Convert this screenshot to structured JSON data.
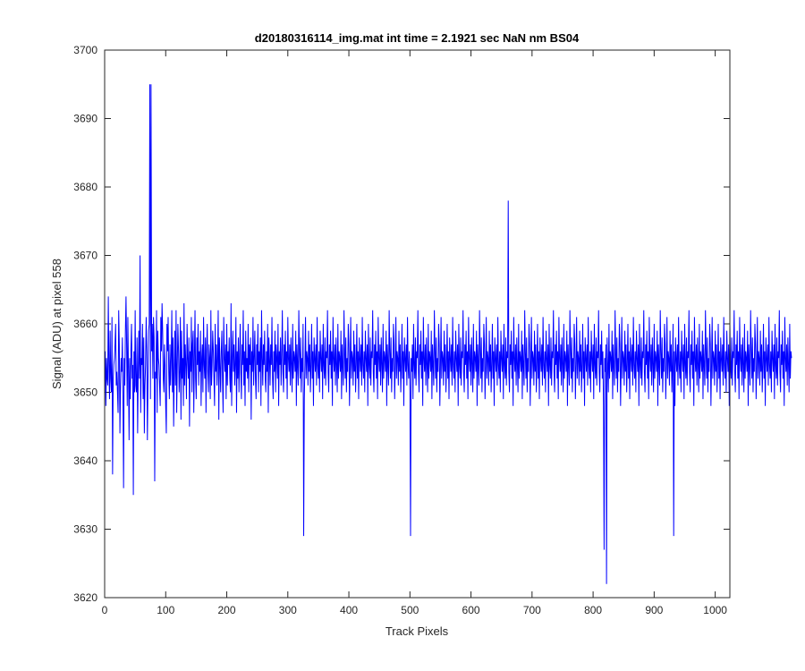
{
  "chart_data": {
    "type": "line",
    "title": "d20180316114_img.mat int time = 2.1921 sec  NaN nm BS04",
    "xlabel": "Track Pixels",
    "ylabel": "Signal (ADU) at pixel 558",
    "xlim": [
      0,
      1024
    ],
    "ylim": [
      3620,
      3700
    ],
    "xticks": [
      0,
      100,
      200,
      300,
      400,
      500,
      600,
      700,
      800,
      900,
      1000
    ],
    "yticks": [
      3620,
      3630,
      3640,
      3650,
      3660,
      3670,
      3680,
      3690,
      3700
    ],
    "grid": false,
    "legend": "none",
    "series": [
      {
        "color": "#0000ff",
        "x_start": 1,
        "x_step": 1,
        "values": [
          3656,
          3648,
          3655,
          3652,
          3651,
          3664,
          3654,
          3649,
          3659,
          3652,
          3650,
          3661,
          3638,
          3652,
          3654,
          3655,
          3657,
          3660,
          3651,
          3653,
          3650,
          3647,
          3662,
          3657,
          3644,
          3651,
          3655,
          3653,
          3658,
          3649,
          3636,
          3655,
          3651,
          3659,
          3664,
          3657,
          3648,
          3661,
          3653,
          3643,
          3655,
          3649,
          3656,
          3660,
          3652,
          3654,
          3635,
          3656,
          3650,
          3662,
          3651,
          3650,
          3658,
          3644,
          3653,
          3659,
          3652,
          3670,
          3647,
          3655,
          3654,
          3660,
          3649,
          3658,
          3644,
          3651,
          3654,
          3661,
          3656,
          3643,
          3652,
          3659,
          3660,
          3653,
          3649,
          3695,
          3656,
          3660,
          3652,
          3661,
          3658,
          3637,
          3653,
          3652,
          3662,
          3647,
          3659,
          3655,
          3654,
          3651,
          3648,
          3661,
          3656,
          3663,
          3659,
          3652,
          3650,
          3657,
          3654,
          3648,
          3644,
          3660,
          3656,
          3661,
          3653,
          3649,
          3657,
          3651,
          3655,
          3662,
          3650,
          3658,
          3645,
          3653,
          3659,
          3651,
          3662,
          3647,
          3654,
          3660,
          3656,
          3650,
          3653,
          3661,
          3646,
          3659,
          3652,
          3655,
          3648,
          3663,
          3651,
          3657,
          3654,
          3649,
          3660,
          3655,
          3652,
          3658,
          3645,
          3656,
          3653,
          3661,
          3650,
          3657,
          3659,
          3647,
          3655,
          3662,
          3652,
          3649,
          3658,
          3654,
          3660,
          3651,
          3656,
          3653,
          3659,
          3648,
          3655,
          3657,
          3650,
          3661,
          3654,
          3652,
          3658,
          3647,
          3656,
          3660,
          3653,
          3650,
          3657,
          3655,
          3649,
          3662,
          3651,
          3654,
          3659,
          3656,
          3652,
          3648,
          3660,
          3653,
          3657,
          3651,
          3655,
          3662,
          3646,
          3658,
          3654,
          3650,
          3656,
          3659,
          3652,
          3647,
          3661,
          3655,
          3653,
          3657,
          3649,
          3660,
          3651,
          3656,
          3654,
          3658,
          3652,
          3650,
          3663,
          3648,
          3655,
          3659,
          3653,
          3657,
          3651,
          3654,
          3661,
          3647,
          3656,
          3652,
          3658,
          3650,
          3655,
          3660,
          3653,
          3649,
          3657,
          3654,
          3662,
          3651,
          3656,
          3648,
          3659,
          3653,
          3655,
          3652,
          3660,
          3650,
          3657,
          3654,
          3658,
          3646,
          3656,
          3653,
          3661,
          3651,
          3655,
          3659,
          3652,
          3649,
          3657,
          3654,
          3660,
          3650,
          3656,
          3653,
          3658,
          3648,
          3662,
          3655,
          3651,
          3657,
          3654,
          3659,
          3652,
          3650,
          3656,
          3653,
          3660,
          3647,
          3658,
          3655,
          3651,
          3657,
          3654,
          3661,
          3652,
          3649,
          3656,
          3653,
          3659,
          3650,
          3657,
          3655,
          3652,
          3660,
          3648,
          3656,
          3654,
          3658,
          3651,
          3655,
          3662,
          3653,
          3650,
          3657,
          3654,
          3659,
          3652,
          3656,
          3649,
          3661,
          3655,
          3653,
          3657,
          3651,
          3658,
          3654,
          3650,
          3660,
          3652,
          3656,
          3655,
          3653,
          3659,
          3648,
          3657,
          3654,
          3651,
          3662,
          3656,
          3652,
          3658,
          3650,
          3655,
          3653,
          3660,
          3657,
          3649,
          3654,
          3661,
          3652,
          3656,
          3655,
          3651,
          3659,
          3653,
          3657,
          3650,
          3654,
          3660,
          3652,
          3656,
          3648,
          3658,
          3655,
          3653,
          3657,
          3651,
          3661,
          3654,
          3652,
          3656,
          3650,
          3659,
          3655,
          3653,
          3657,
          3649,
          3660,
          3654,
          3652,
          3658,
          3651,
          3656,
          3655,
          3662,
          3653,
          3650,
          3657,
          3654,
          3659,
          3652,
          3656,
          3648,
          3661,
          3655,
          3653,
          3657,
          3651,
          3658,
          3654,
          3650,
          3660,
          3652,
          3656,
          3655,
          3653,
          3659,
          3649,
          3657,
          3654,
          3651,
          3662,
          3656,
          3652,
          3658,
          3650,
          3655,
          3653,
          3660,
          3657,
          3648,
          3654,
          3661,
          3652,
          3656,
          3655,
          3651,
          3659,
          3653,
          3657,
          3650,
          3654,
          3660,
          3652,
          3656,
          3649,
          3658,
          3655,
          3653,
          3657,
          3651,
          3661,
          3654,
          3652,
          3656,
          3650,
          3659,
          3655,
          3653,
          3657,
          3648,
          3660,
          3654,
          3652,
          3658,
          3651,
          3656,
          3655,
          3662,
          3653,
          3650,
          3657,
          3654,
          3659,
          3652,
          3656,
          3649,
          3661,
          3655,
          3653,
          3657,
          3651,
          3658,
          3654,
          3650,
          3660,
          3652,
          3656,
          3655,
          3653,
          3659,
          3648,
          3657,
          3654,
          3651,
          3662,
          3656,
          3652,
          3658,
          3650,
          3655,
          3653,
          3660,
          3657,
          3649,
          3654,
          3661,
          3652,
          3656,
          3655,
          3651,
          3659,
          3653,
          3657,
          3650,
          3654,
          3660,
          3652,
          3656,
          3648,
          3658,
          3655,
          3653,
          3657,
          3651,
          3661,
          3654,
          3652,
          3656,
          3650,
          3659,
          3655,
          3653,
          3657,
          3649,
          3660,
          3654,
          3652,
          3658,
          3651,
          3656,
          3655,
          3662,
          3653,
          3650,
          3657,
          3654,
          3659,
          3652,
          3656,
          3648,
          3661,
          3655,
          3653,
          3657,
          3651,
          3658,
          3654,
          3650,
          3660,
          3652,
          3656,
          3655,
          3653,
          3659,
          3649,
          3657,
          3654,
          3651,
          3662,
          3656,
          3652,
          3658,
          3650,
          3655,
          3653,
          3660,
          3657,
          3648,
          3654,
          3661,
          3652,
          3656,
          3655,
          3651,
          3659,
          3653,
          3657,
          3650,
          3654,
          3660,
          3652,
          3656,
          3649,
          3658,
          3655,
          3653,
          3657,
          3651,
          3661,
          3654,
          3652,
          3656,
          3650,
          3659,
          3655,
          3653,
          3657,
          3648,
          3660,
          3654,
          3652,
          3658,
          3651,
          3656,
          3655,
          3662,
          3653,
          3650,
          3657,
          3654,
          3659,
          3652,
          3656,
          3649,
          3661,
          3655,
          3653,
          3657,
          3651,
          3658,
          3654,
          3650,
          3660,
          3652,
          3656,
          3655,
          3653,
          3659,
          3648,
          3657,
          3654,
          3651,
          3662,
          3656,
          3652,
          3658,
          3650,
          3655,
          3653,
          3660,
          3657,
          3649,
          3654,
          3661,
          3652,
          3656,
          3655,
          3651,
          3659,
          3653,
          3657,
          3650,
          3654,
          3660,
          3652,
          3656,
          3648,
          3658,
          3655,
          3653,
          3657,
          3651,
          3661,
          3654,
          3652,
          3656,
          3650,
          3659,
          3655,
          3653,
          3657,
          3649,
          3660,
          3654,
          3652,
          3658,
          3651,
          3656,
          3655,
          3662,
          3653,
          3650,
          3657,
          3654,
          3659,
          3652,
          3656,
          3648,
          3661,
          3655,
          3653,
          3657,
          3651,
          3658,
          3654,
          3650,
          3660,
          3652,
          3656,
          3655,
          3653,
          3659,
          3649,
          3657,
          3654,
          3651,
          3662,
          3656,
          3652,
          3658,
          3650,
          3655,
          3653,
          3660,
          3657,
          3648,
          3654,
          3661,
          3652,
          3656,
          3655,
          3651,
          3659,
          3653,
          3657,
          3650,
          3654,
          3660,
          3652,
          3656,
          3649,
          3658,
          3655,
          3653,
          3657,
          3651,
          3661,
          3654,
          3652,
          3656,
          3650,
          3659,
          3655,
          3653,
          3657,
          3648,
          3660,
          3654,
          3652,
          3658,
          3651,
          3656,
          3655,
          3662,
          3653,
          3650,
          3657,
          3654,
          3659,
          3652,
          3656,
          3649,
          3661,
          3655,
          3653,
          3657,
          3651,
          3658,
          3654,
          3650,
          3660,
          3652,
          3656,
          3655,
          3653,
          3659,
          3648,
          3657,
          3654,
          3651,
          3662,
          3656,
          3652,
          3658,
          3650,
          3655,
          3653,
          3660,
          3657,
          3649,
          3654,
          3661,
          3652,
          3656,
          3655,
          3651,
          3659,
          3653,
          3657,
          3650,
          3654,
          3660,
          3652,
          3656,
          3648,
          3658,
          3655,
          3653,
          3657,
          3651,
          3661,
          3654,
          3652,
          3656,
          3650,
          3659,
          3655,
          3653,
          3657,
          3649,
          3660,
          3654,
          3652,
          3658,
          3651,
          3656,
          3655,
          3662,
          3653,
          3650,
          3657,
          3654,
          3659,
          3652,
          3656,
          3648,
          3661,
          3655,
          3653,
          3657,
          3651,
          3658,
          3654,
          3650,
          3660,
          3652,
          3656,
          3655,
          3653,
          3659,
          3649,
          3657,
          3654,
          3651,
          3662,
          3656,
          3652,
          3658,
          3650,
          3655,
          3653,
          3660,
          3657,
          3648,
          3654,
          3661,
          3652,
          3656,
          3655,
          3651,
          3659,
          3653,
          3657,
          3650,
          3654,
          3660,
          3652,
          3656,
          3649,
          3658,
          3655,
          3653,
          3657,
          3651,
          3661,
          3654,
          3652,
          3656,
          3650,
          3659,
          3655,
          3653,
          3657,
          3648,
          3660,
          3654,
          3652,
          3658,
          3651,
          3656,
          3655,
          3662,
          3653,
          3650,
          3657,
          3654,
          3659,
          3652,
          3656,
          3649,
          3661,
          3655,
          3653,
          3657,
          3651,
          3658,
          3654,
          3650,
          3660,
          3652,
          3656,
          3655,
          3653,
          3659,
          3648,
          3657,
          3654,
          3651,
          3662,
          3656,
          3652,
          3658,
          3650,
          3655,
          3653,
          3660,
          3657,
          3649,
          3654,
          3661,
          3652,
          3656,
          3655,
          3651,
          3659,
          3653,
          3657,
          3650,
          3654,
          3660,
          3652,
          3656,
          3648,
          3658,
          3655,
          3653,
          3657,
          3651,
          3661,
          3654,
          3652,
          3656,
          3650,
          3659,
          3655,
          3653,
          3657,
          3649,
          3660,
          3654,
          3652,
          3658,
          3651,
          3656,
          3655,
          3662,
          3653,
          3650,
          3657,
          3654,
          3659,
          3652,
          3656,
          3648,
          3661,
          3655,
          3653,
          3657,
          3651,
          3658,
          3654,
          3650,
          3660,
          3652,
          3656,
          3655,
          3653,
          3659,
          3649,
          3657,
          3654,
          3651,
          3662,
          3656,
          3652,
          3658,
          3650,
          3655,
          3653,
          3660,
          3657,
          3648,
          3654,
          3661,
          3652,
          3656,
          3655,
          3651,
          3659,
          3653,
          3657,
          3650,
          3654,
          3660,
          3652,
          3656,
          3649,
          3658,
          3655,
          3653,
          3657,
          3651,
          3661,
          3654,
          3652,
          3656,
          3650,
          3659,
          3655,
          3653,
          3657,
          3648,
          3660,
          3654,
          3652,
          3658,
          3651,
          3656,
          3655,
          3662,
          3653,
          3650,
          3657,
          3654,
          3659,
          3652,
          3656,
          3649,
          3661,
          3655,
          3653,
          3657,
          3651,
          3658,
          3654,
          3650,
          3660,
          3652,
          3656,
          3655,
          3653,
          3659,
          3648,
          3657,
          3654,
          3651,
          3662,
          3656,
          3652,
          3658,
          3650,
          3655,
          3653,
          3660,
          3657,
          3649,
          3654,
          3661,
          3652,
          3656,
          3655,
          3651,
          3659,
          3653,
          3657,
          3650,
          3654,
          3660,
          3652,
          3656,
          3648,
          3658,
          3655,
          3653,
          3657,
          3651,
          3661,
          3654,
          3652,
          3656,
          3650,
          3659,
          3655,
          3653,
          3657,
          3649,
          3660,
          3654,
          3652,
          3658,
          3651,
          3656,
          3655,
          3662,
          3653,
          3650,
          3657,
          3654,
          3659,
          3652,
          3656,
          3648,
          3661,
          3655,
          3653,
          3657,
          3651,
          3658,
          3654,
          3650,
          3660,
          3652,
          3656,
          3655
        ]
      }
    ],
    "notable_points": [
      {
        "x": 74,
        "y": 3695
      },
      {
        "x": 661,
        "y": 3678
      },
      {
        "x": 822,
        "y": 3622
      },
      {
        "x": 818,
        "y": 3627
      },
      {
        "x": 326,
        "y": 3629
      },
      {
        "x": 501,
        "y": 3629
      },
      {
        "x": 932,
        "y": 3629
      }
    ]
  }
}
